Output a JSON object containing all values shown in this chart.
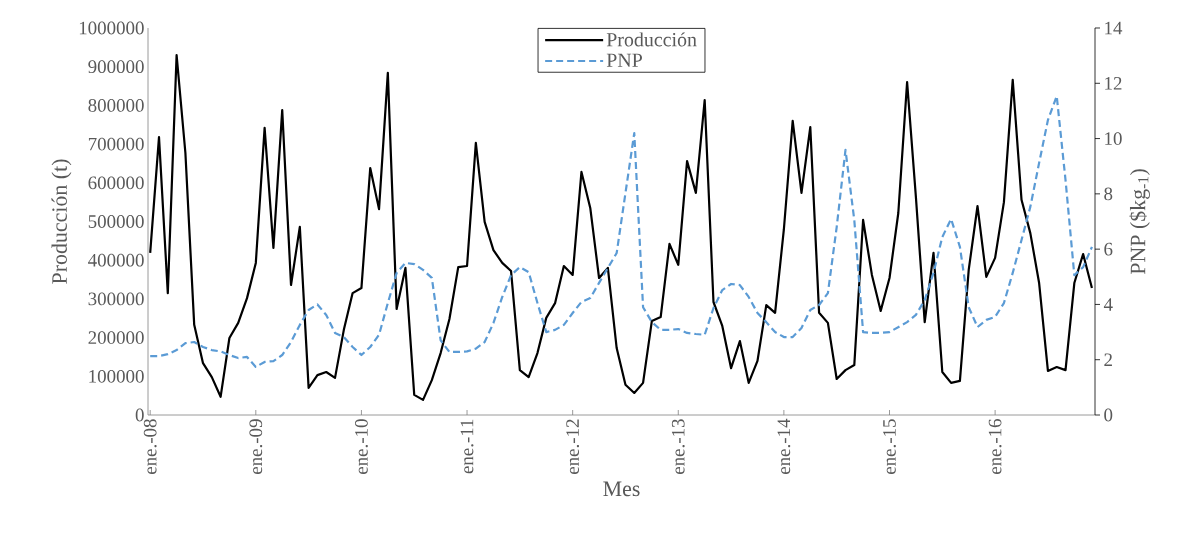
{
  "chart_data": {
    "type": "line",
    "xlabel": "Mes",
    "ylabel": "Producción (t)",
    "y2label": "PNP ($kg$_{-1}$)",
    "categories": [
      "ene.-08",
      null,
      null,
      null,
      null,
      null,
      null,
      null,
      null,
      null,
      null,
      null,
      "ene.-09",
      null,
      null,
      null,
      null,
      null,
      null,
      null,
      null,
      null,
      null,
      null,
      "ene.-10",
      null,
      null,
      null,
      null,
      null,
      null,
      null,
      null,
      null,
      null,
      null,
      "ene.-11",
      null,
      null,
      null,
      null,
      null,
      null,
      null,
      null,
      null,
      null,
      null,
      "ene.-12",
      null,
      null,
      null,
      null,
      null,
      null,
      null,
      null,
      null,
      null,
      null,
      "ene.-13",
      null,
      null,
      null,
      null,
      null,
      null,
      null,
      null,
      null,
      null,
      null,
      "ene.-14",
      null,
      null,
      null,
      null,
      null,
      null,
      null,
      null,
      null,
      null,
      null,
      "ene.-15",
      null,
      null,
      null,
      null,
      null,
      null,
      null,
      null,
      null,
      null,
      null,
      "ene.-16",
      null,
      null,
      null,
      null,
      null,
      null,
      null,
      null,
      null,
      null,
      null
    ],
    "ylim": [
      0,
      1000000
    ],
    "yticks": [
      0,
      100000,
      200000,
      300000,
      400000,
      500000,
      600000,
      700000,
      800000,
      900000,
      1000000
    ],
    "y2lim": [
      0,
      14
    ],
    "y2ticks": [
      0,
      2,
      4,
      6,
      8,
      10,
      12,
      14
    ],
    "legend": "top",
    "grid": false,
    "series": [
      {
        "name": "Producción",
        "color": "#000000",
        "line_style": "solid",
        "values": [
          419000,
          718000,
          315000,
          930000,
          677000,
          233000,
          134000,
          98000,
          47000,
          199000,
          238000,
          302000,
          393000,
          742000,
          432000,
          788000,
          336000,
          486000,
          70000,
          103000,
          111000,
          96000,
          220000,
          315000,
          328000,
          638000,
          532000,
          884000,
          274000,
          380000,
          52000,
          39000,
          90000,
          160000,
          248000,
          382000,
          385000,
          703000,
          499000,
          426000,
          393000,
          372000,
          116000,
          98000,
          160000,
          251000,
          289000,
          385000,
          362000,
          628000,
          535000,
          354000,
          380000,
          173000,
          78000,
          57000,
          83000,
          243000,
          253000,
          442000,
          388000,
          656000,
          574000,
          814000,
          292000,
          230000,
          121000,
          191000,
          83000,
          140000,
          284000,
          264000,
          480000,
          760000,
          574000,
          744000,
          264000,
          238000,
          93000,
          116000,
          129000,
          504000,
          362000,
          269000,
          354000,
          522000,
          860000,
          563000,
          240000,
          419000,
          111000,
          83000,
          88000,
          375000,
          540000,
          357000,
          406000,
          550000,
          866000,
          556000,
          470000,
          341000,
          114000,
          124000,
          116000,
          341000,
          416000,
          328000
        ]
      },
      {
        "name": "PNP",
        "color": "#5b9bd5",
        "line_style": "dashed",
        "axis": "y2",
        "values": [
          2.13,
          2.13,
          2.2,
          2.35,
          2.6,
          2.64,
          2.46,
          2.35,
          2.3,
          2.17,
          2.06,
          2.1,
          1.74,
          1.92,
          1.95,
          2.17,
          2.64,
          3.26,
          3.8,
          4.0,
          3.62,
          2.97,
          2.82,
          2.46,
          2.17,
          2.46,
          2.9,
          4.05,
          5.14,
          5.5,
          5.46,
          5.25,
          4.96,
          2.7,
          2.28,
          2.28,
          2.3,
          2.4,
          2.64,
          3.33,
          4.27,
          5.06,
          5.35,
          5.17,
          4.05,
          3.0,
          3.08,
          3.26,
          3.69,
          4.09,
          4.23,
          4.78,
          5.32,
          5.86,
          8.03,
          10.2,
          3.9,
          3.36,
          3.08,
          3.08,
          3.11,
          2.97,
          2.93,
          2.9,
          3.87,
          4.52,
          4.74,
          4.7,
          4.27,
          3.69,
          3.36,
          3.0,
          2.82,
          2.82,
          3.15,
          3.8,
          3.98,
          4.41,
          6.8,
          9.59,
          7.05,
          3.0,
          2.97,
          2.97,
          3.0,
          3.18,
          3.36,
          3.62,
          4.16,
          5.14,
          6.44,
          7.09,
          6.08,
          3.9,
          3.18,
          3.44,
          3.55,
          4.05,
          5.14,
          6.33,
          7.53,
          9.12,
          10.67,
          11.54,
          8.5,
          5.06,
          5.35,
          6.08
        ]
      }
    ]
  }
}
